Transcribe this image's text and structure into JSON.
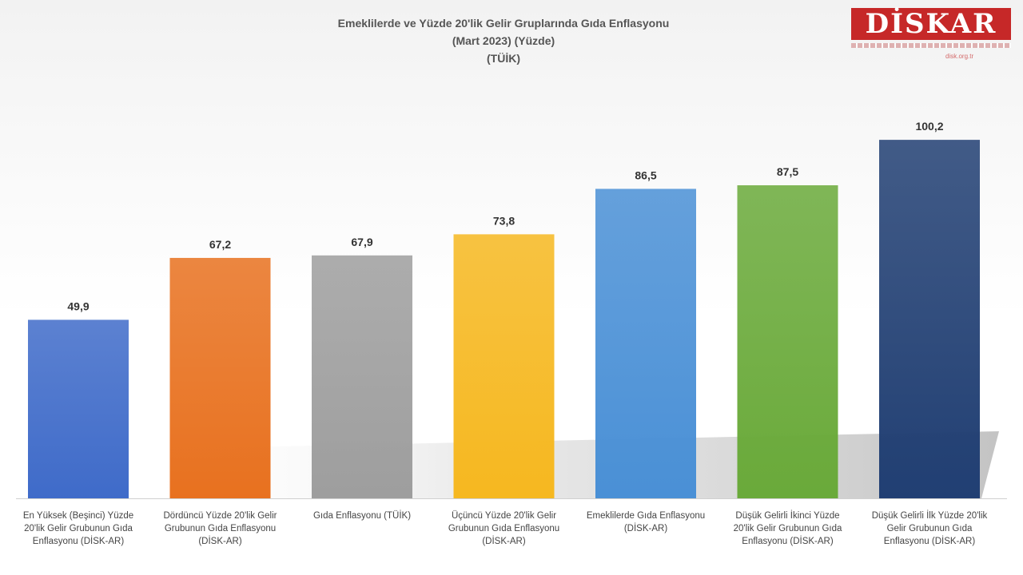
{
  "header": {
    "title_lines": [
      "Emeklilerde ve Yüzde 20'lik Gelir Gruplarında Gıda Enflasyonu",
      "(Mart 2023) (Yüzde)",
      "(TÜİK)"
    ]
  },
  "logo": {
    "text": "DİSKAR",
    "subtext": "disk.org.tr"
  },
  "colors": {
    "bars": [
      "#3f6bc9",
      "#e8711f",
      "#9e9e9e",
      "#f6b820",
      "#4a90d6",
      "#6aaa3a",
      "#213f73"
    ]
  },
  "chart_data": {
    "type": "bar",
    "title": "Emeklilerde ve Yüzde 20'lik Gelir Gruplarında Gıda Enflasyonu (Mart 2023) (Yüzde) (TÜİK)",
    "categories": [
      "En Yüksek (Beşinci) Yüzde 20'lik Gelir Grubunun Gıda Enflasyonu (DİSK-AR)",
      "Dördüncü Yüzde 20'lik Gelir Grubunun Gıda Enflasyonu (DİSK-AR)",
      "Gıda Enflasyonu (TÜİK)",
      "Üçüncü Yüzde 20'lik Gelir Grubunun Gıda Enflasyonu (DİSK-AR)",
      "Emeklilerde Gıda Enflasyonu (DİSK-AR)",
      "Düşük Gelirli İkinci Yüzde 20'lik Gelir Grubunun Gıda Enflasyonu (DİSK-AR)",
      "Düşük Gelirli İlk Yüzde 20'lik Gelir Grubunun Gıda Enflasyonu (DİSK-AR)"
    ],
    "values": [
      49.9,
      67.2,
      67.9,
      73.8,
      86.5,
      87.5,
      100.2
    ],
    "value_labels": [
      "49,9",
      "67,2",
      "67,9",
      "73,8",
      "86,5",
      "87,5",
      "100,2"
    ],
    "xlabel": "",
    "ylabel": "",
    "grid": false,
    "legend": "none"
  }
}
